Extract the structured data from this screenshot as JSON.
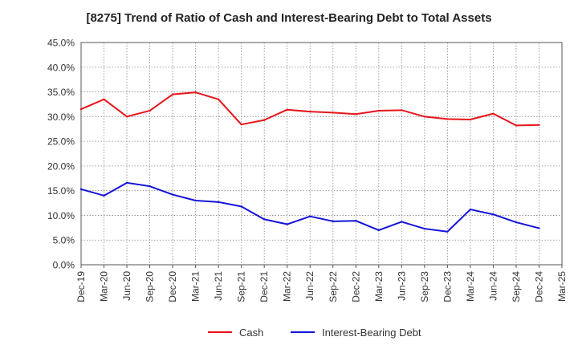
{
  "chart_data": {
    "type": "line",
    "title": "[8275]  Trend of Ratio of Cash and Interest-Bearing Debt to Total Assets",
    "xlabel": "",
    "ylabel": "",
    "x": [
      "Dec-19",
      "Mar-20",
      "Jun-20",
      "Sep-20",
      "Dec-20",
      "Mar-21",
      "Jun-21",
      "Sep-21",
      "Dec-21",
      "Mar-22",
      "Jun-22",
      "Sep-22",
      "Dec-22",
      "Mar-23",
      "Jun-23",
      "Sep-23",
      "Dec-23",
      "Mar-24",
      "Jun-24",
      "Sep-24",
      "Dec-24",
      "Mar-25"
    ],
    "yticks": [
      "0.0%",
      "5.0%",
      "10.0%",
      "15.0%",
      "20.0%",
      "25.0%",
      "30.0%",
      "35.0%",
      "40.0%",
      "45.0%"
    ],
    "ylim": [
      0,
      45
    ],
    "grid": true,
    "legend_position": "bottom-center",
    "series": [
      {
        "name": "Cash",
        "color": "#e8141a",
        "values": [
          31.5,
          33.5,
          30.0,
          31.2,
          34.5,
          34.9,
          33.5,
          28.4,
          29.3,
          31.4,
          31.0,
          30.8,
          30.5,
          31.2,
          31.3,
          30.0,
          29.5,
          29.4,
          30.6,
          28.2,
          28.3,
          null
        ]
      },
      {
        "name": "Interest-Bearing Debt",
        "color": "#1414d8",
        "values": [
          15.3,
          14.0,
          16.6,
          15.9,
          14.2,
          13.0,
          12.7,
          11.8,
          9.2,
          8.2,
          9.8,
          8.8,
          8.9,
          7.0,
          8.7,
          7.3,
          6.7,
          11.2,
          10.2,
          8.6,
          7.4,
          null
        ]
      }
    ]
  }
}
